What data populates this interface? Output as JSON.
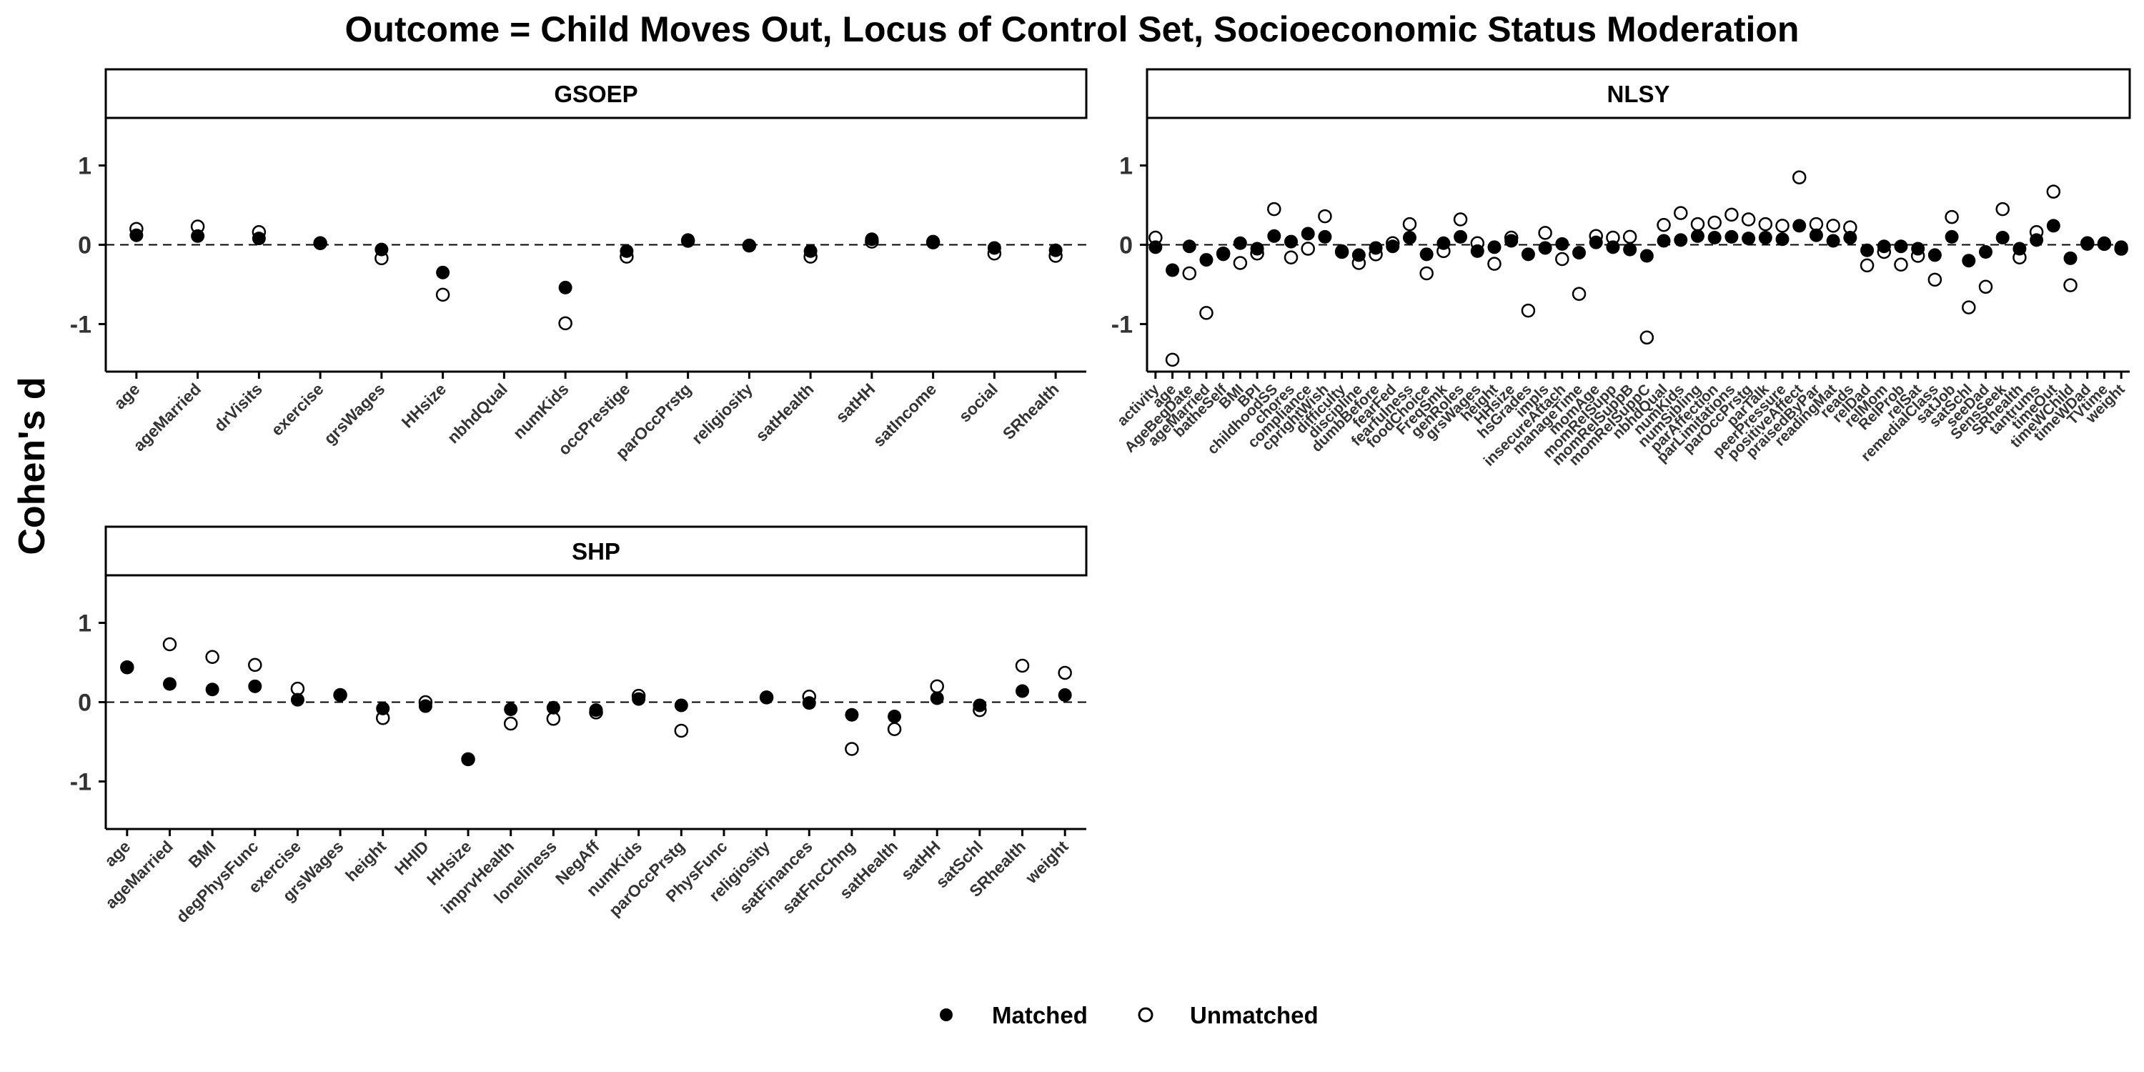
{
  "title": "Outcome = Child Moves Out, Locus of Control Set, Socioeconomic Status Moderation",
  "ylabel": "Cohen's d",
  "legend": {
    "placement": "bottom",
    "items": [
      {
        "label": "Matched",
        "marker": "filled-circle"
      },
      {
        "label": "Unmatched",
        "marker": "open-circle"
      }
    ]
  },
  "colors": {
    "matched_fill": "#000000",
    "unmatched_stroke": "#000000",
    "strip_fill": "#ffffff",
    "reference_line": "#000000"
  },
  "chart_data": [
    {
      "type": "scatter",
      "panel": "GSOEP",
      "ylim": [
        -1.6,
        1.6
      ],
      "yticks": [
        -1,
        0,
        1
      ],
      "reference_line": 0,
      "grid": false,
      "categories": [
        "age",
        "ageMarried",
        "drVisits",
        "exercise",
        "grsWages",
        "HHsize",
        "nbhdQual",
        "numKids",
        "occPrestige",
        "parOccPrstg",
        "religiosity",
        "satHealth",
        "satHH",
        "satIncome",
        "social",
        "SRhealth"
      ],
      "series": [
        {
          "name": "Matched",
          "values": [
            0.12,
            0.11,
            0.08,
            0.02,
            -0.06,
            -0.35,
            null,
            -0.54,
            -0.08,
            0.06,
            -0.01,
            -0.08,
            0.07,
            0.04,
            -0.04,
            -0.07
          ]
        },
        {
          "name": "Unmatched",
          "values": [
            0.2,
            0.23,
            0.16,
            0.02,
            -0.17,
            -0.63,
            null,
            -0.99,
            -0.15,
            0.05,
            -0.01,
            -0.15,
            0.04,
            0.03,
            -0.11,
            -0.14
          ]
        }
      ]
    },
    {
      "type": "scatter",
      "panel": "NLSY",
      "ylim": [
        -1.6,
        1.6
      ],
      "yticks": [
        -1,
        0,
        1
      ],
      "reference_line": 0,
      "grid": false,
      "categories": [
        "activity",
        "age",
        "AgeBegDate",
        "ageMarried",
        "batheSelf",
        "BMI",
        "BPI",
        "childhoodSS",
        "chores",
        "compliance",
        "cprightWish",
        "difficulty",
        "discipline",
        "dumbBefore",
        "fearFed",
        "fearfulness",
        "foodChoice",
        "FreqSmk",
        "genRoles",
        "grsWages",
        "height",
        "HHsize",
        "hsGrades",
        "impls",
        "insecureAttach",
        "manageTime",
        "momAge",
        "momRelSupp",
        "momRelSuppB",
        "momRelSuppC",
        "nbhdQual",
        "numKids",
        "numSibling",
        "parAffection",
        "parLimitations",
        "parOccPrstg",
        "parTalk",
        "peerPressure",
        "positiveAffect",
        "praisedByPar",
        "readingMat",
        "reads",
        "relDad",
        "relMom",
        "RelProb",
        "relSat",
        "remedialClass",
        "satJob",
        "satSchl",
        "seeDad",
        "SensSeek",
        "SRhealth",
        "tantrums",
        "timeOut",
        "timeWChild",
        "timeWDad",
        "TVtime",
        "weight"
      ],
      "series": [
        {
          "name": "Matched",
          "values": [
            -0.03,
            -0.32,
            -0.02,
            -0.19,
            -0.12,
            0.02,
            -0.05,
            0.11,
            0.04,
            0.14,
            0.1,
            -0.08,
            -0.13,
            -0.04,
            -0.02,
            0.09,
            -0.12,
            0.02,
            0.1,
            -0.08,
            -0.03,
            0.05,
            -0.12,
            -0.04,
            0.01,
            -0.1,
            0.03,
            -0.03,
            -0.06,
            -0.14,
            0.05,
            0.06,
            0.11,
            0.09,
            0.1,
            0.08,
            0.09,
            0.07,
            0.24,
            0.12,
            0.05,
            0.09,
            -0.07,
            -0.02,
            -0.02,
            -0.05,
            -0.13,
            0.1,
            -0.2,
            -0.09,
            0.09,
            -0.05,
            0.06,
            0.24,
            -0.17,
            0.01,
            0.02,
            -0.03
          ]
        },
        {
          "name": "Unmatched",
          "values": [
            0.09,
            -1.45,
            -0.36,
            -0.86,
            -0.11,
            -0.23,
            -0.11,
            0.45,
            -0.16,
            -0.05,
            0.36,
            -0.09,
            -0.23,
            -0.12,
            0.02,
            0.26,
            -0.36,
            -0.08,
            0.32,
            0.02,
            -0.24,
            0.09,
            -0.83,
            0.15,
            -0.18,
            -0.62,
            0.11,
            0.09,
            0.1,
            -1.17,
            0.25,
            0.4,
            0.26,
            0.28,
            0.38,
            0.32,
            0.26,
            0.24,
            0.85,
            0.26,
            0.24,
            0.22,
            -0.26,
            -0.09,
            -0.25,
            -0.14,
            -0.44,
            0.35,
            -0.79,
            -0.53,
            0.45,
            -0.16,
            0.16,
            0.67,
            -0.51,
            0.02,
            0.01,
            -0.05
          ]
        }
      ]
    },
    {
      "type": "scatter",
      "panel": "SHP",
      "ylim": [
        -1.6,
        1.6
      ],
      "yticks": [
        -1,
        0,
        1
      ],
      "reference_line": 0,
      "grid": false,
      "categories": [
        "age",
        "ageMarried",
        "BMI",
        "degPhysFunc",
        "exercise",
        "grsWages",
        "height",
        "HHID",
        "HHsize",
        "imprvHealth",
        "loneliness",
        "NegAff",
        "numKids",
        "parOccPrstg",
        "PhysFunc",
        "religiosity",
        "satFinances",
        "satFncChng",
        "satHealth",
        "satHH",
        "satSchl",
        "SRhealth",
        "weight"
      ],
      "series": [
        {
          "name": "Matched",
          "values": [
            0.44,
            0.23,
            0.16,
            0.2,
            0.03,
            0.09,
            -0.08,
            -0.05,
            -0.72,
            -0.09,
            -0.07,
            -0.1,
            0.04,
            -0.04,
            null,
            0.06,
            -0.01,
            -0.16,
            -0.18,
            0.05,
            -0.04,
            0.14,
            0.09
          ]
        },
        {
          "name": "Unmatched",
          "values": [
            0.44,
            0.73,
            0.57,
            0.47,
            0.17,
            0.09,
            -0.2,
            0.0,
            -0.72,
            -0.27,
            -0.21,
            -0.13,
            0.08,
            -0.36,
            null,
            0.06,
            0.07,
            -0.59,
            -0.34,
            0.2,
            -0.1,
            0.46,
            0.37
          ]
        }
      ]
    }
  ]
}
